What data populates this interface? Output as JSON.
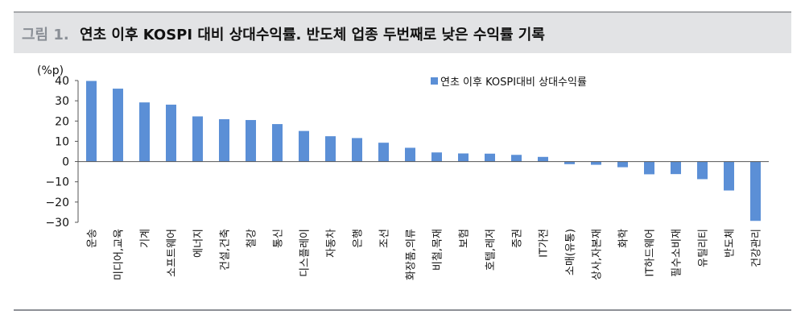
{
  "header": {
    "figure_label": "그림 1.",
    "title": "연초 이후 KOSPI 대비 상대수익률. 반도체 업종 두번째로 낮은 수익률 기록"
  },
  "colors": {
    "bar": "#5b8fd6",
    "header_bg": "#e2e3e5"
  },
  "chart_data": {
    "type": "bar",
    "title": "",
    "unit_label": "(%p)",
    "xlabel": "",
    "ylabel": "",
    "ylim": [
      -30,
      40
    ],
    "yticks": [
      40,
      30,
      20,
      10,
      0,
      -10,
      -20,
      -30
    ],
    "ytick_labels": [
      "40",
      "30",
      "20",
      "10",
      "0",
      "−10",
      "−20",
      "−30"
    ],
    "legend": {
      "position": "top-right",
      "label": "연초 이후 KOSPI대비 상대수익률"
    },
    "categories": [
      "운송",
      "미디어,교육",
      "기계",
      "소프트웨어",
      "에너지",
      "건설,건축",
      "철강",
      "통신",
      "디스플레이",
      "자동차",
      "은행",
      "조선",
      "화장품,의류",
      "비철,목재",
      "보험",
      "호텔,레저",
      "증권",
      "IT가전",
      "소매(유통)",
      "상사,자본재",
      "화학",
      "IT하드웨어",
      "필수소비재",
      "유틸리티",
      "반도체",
      "건강관리"
    ],
    "series": [
      {
        "name": "연초 이후 KOSPI대비 상대수익률",
        "values": [
          39.8,
          36.0,
          29.2,
          28.1,
          22.3,
          20.9,
          20.5,
          18.5,
          15.1,
          12.5,
          11.6,
          9.3,
          6.8,
          4.5,
          4.0,
          3.9,
          3.3,
          2.3,
          -1.3,
          -1.6,
          -2.8,
          -6.3,
          -6.2,
          -8.7,
          -14.3,
          -29.3
        ]
      }
    ]
  }
}
